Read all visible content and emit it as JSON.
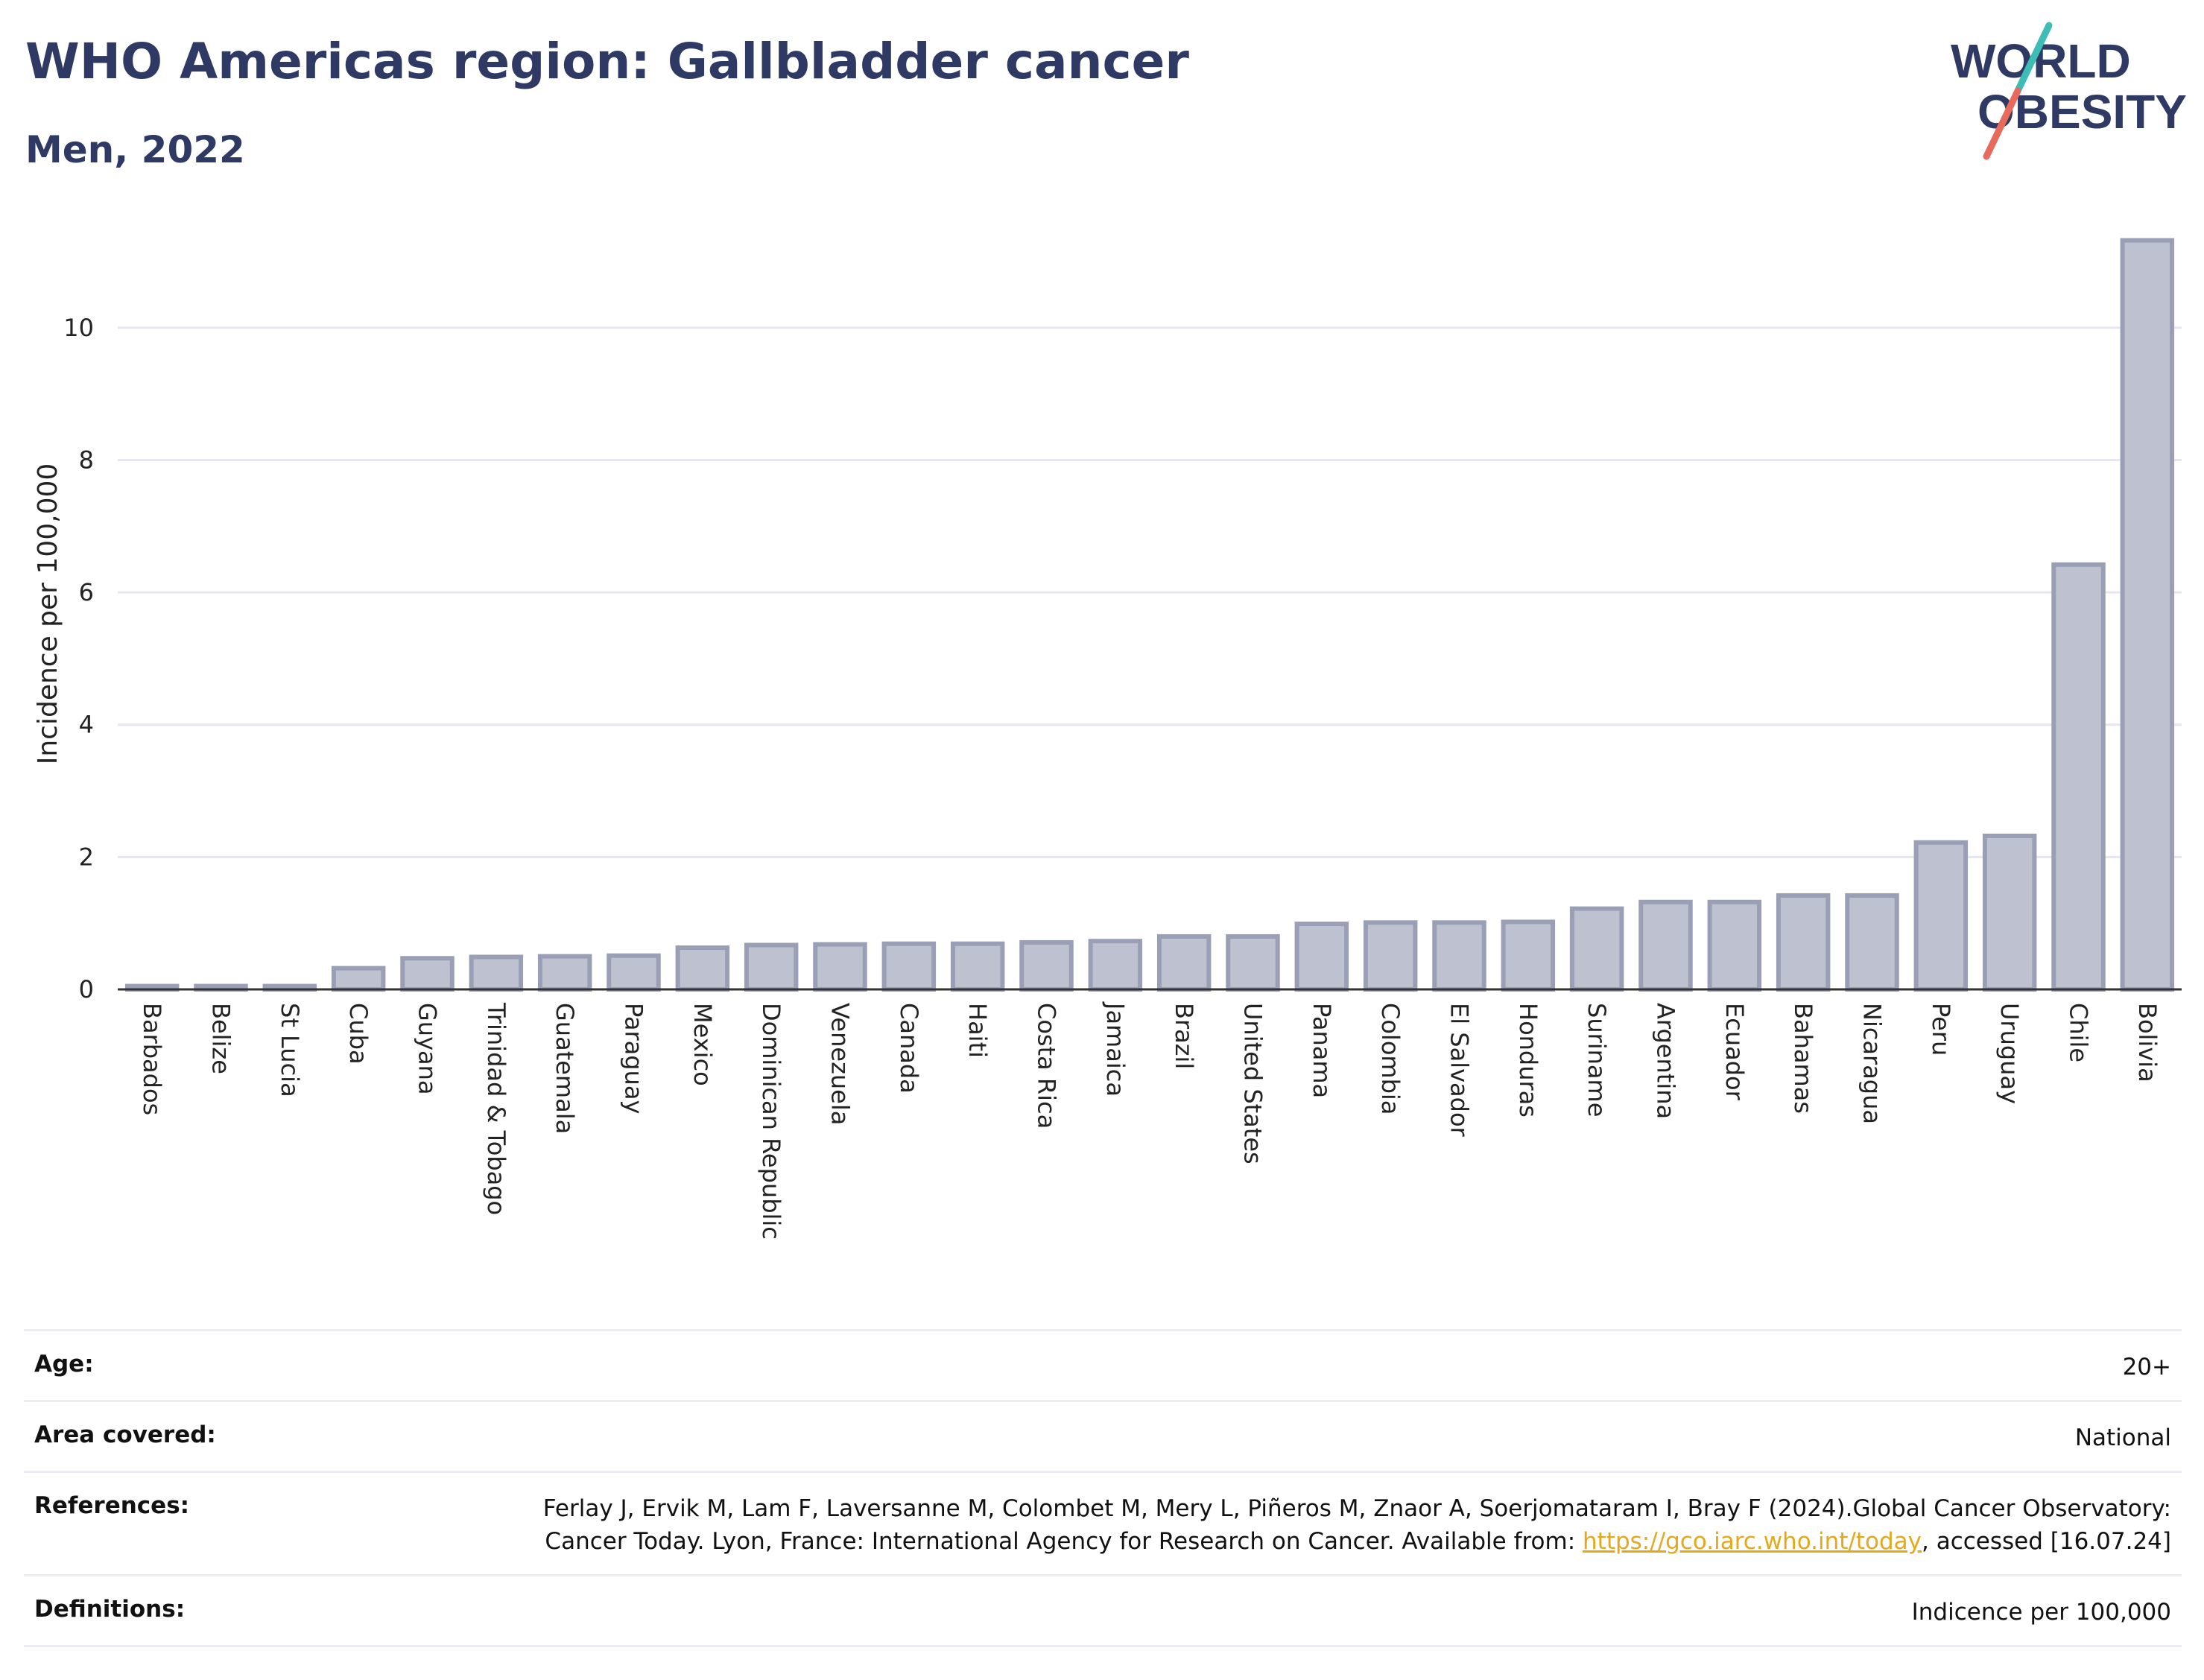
{
  "header": {
    "title": "WHO Americas region: Gallbladder cancer",
    "subtitle": "Men, 2022"
  },
  "logo": {
    "line1": "WORLD",
    "line2": "OBESITY",
    "colors": {
      "text": "#2e3a64",
      "slash_top": "#3dbdb6",
      "slash_bottom": "#e86a5c"
    }
  },
  "chart_data": {
    "type": "bar",
    "categories": [
      "Barbados",
      "Belize",
      "St Lucia",
      "Cuba",
      "Guyana",
      "Trinidad & Tobago",
      "Guatemala",
      "Paraguay",
      "Mexico",
      "Dominican Republic",
      "Venezuela",
      "Canada",
      "Haiti",
      "Costa Rica",
      "Jamaica",
      "Brazil",
      "United States",
      "Panama",
      "Colombia",
      "El Salvador",
      "Honduras",
      "Suriname",
      "Argentina",
      "Ecuador",
      "Bahamas",
      "Nicaragua",
      "Peru",
      "Uruguay",
      "Chile",
      "Bolivia"
    ],
    "values": [
      0.05,
      0.05,
      0.05,
      0.32,
      0.47,
      0.49,
      0.5,
      0.51,
      0.63,
      0.67,
      0.68,
      0.69,
      0.69,
      0.71,
      0.73,
      0.8,
      0.8,
      0.99,
      1.01,
      1.01,
      1.02,
      1.22,
      1.32,
      1.32,
      1.42,
      1.42,
      2.22,
      2.32,
      6.42,
      11.32
    ],
    "ylabel": "Incidence per 100,000",
    "yticks": [
      "0",
      "2",
      "4",
      "6",
      "8",
      "10"
    ],
    "ylim": [
      0,
      11.8
    ],
    "grid": true,
    "colors": {
      "bar_fill": "#bec1cf",
      "bar_stroke": "#9a9fb6",
      "grid": "#e6e6ee",
      "axis": "#333333"
    }
  },
  "details": [
    {
      "label": "Age:",
      "value": "20+"
    },
    {
      "label": "Area covered:",
      "value": "National"
    },
    {
      "label": "References:",
      "value_before": "Ferlay J, Ervik M, Lam F, Laversanne M, Colombet M, Mery L, Piñeros M, Znaor A, Soerjomataram I, Bray F (2024).Global Cancer Observatory: Cancer Today. Lyon, France: International Agency for Research on Cancer. Available from: ",
      "link": "https://gco.iarc.who.int/today",
      "value_after": ", accessed [16.07.24]"
    },
    {
      "label": "Definitions:",
      "value": "Indicence per 100,000"
    }
  ]
}
